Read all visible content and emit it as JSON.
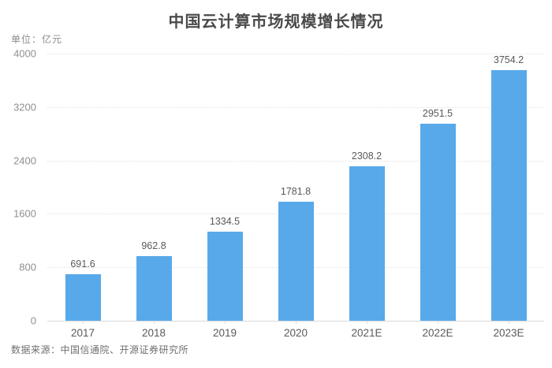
{
  "title": "中国云计算市场规模增长情况",
  "unit_label": "单位：亿元",
  "source": "数据来源：中国信通院、开源证券研究所",
  "colors": {
    "bar": "#58a9ea",
    "grid": "#e2e2e2",
    "axis": "#d9d9d9",
    "title_text": "#4a4a4a",
    "value_text": "#595959",
    "tick_text": "#8f8f8f"
  },
  "chart_data": {
    "type": "bar",
    "categories": [
      "2017",
      "2018",
      "2019",
      "2020",
      "2021E",
      "2022E",
      "2023E"
    ],
    "values": [
      691.6,
      962.8,
      1334.5,
      1781.8,
      2308.2,
      2951.5,
      3754.2
    ],
    "title": "中国云计算市场规模增长情况",
    "xlabel": "",
    "ylabel": "单位：亿元",
    "ylim": [
      0,
      4000
    ],
    "yticks": [
      0,
      800,
      1600,
      2400,
      3200,
      4000
    ],
    "grid": "horizontal-dotted",
    "legend_position": "none",
    "bar_color": "#58a9ea",
    "value_labels_shown": true
  }
}
